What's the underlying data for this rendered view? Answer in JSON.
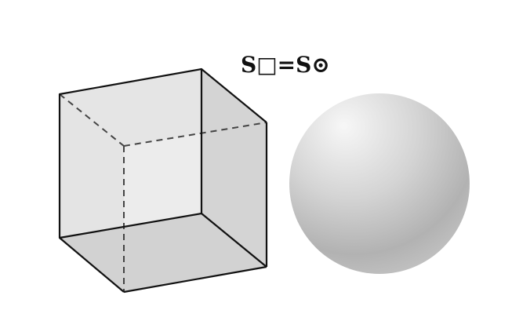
{
  "equation": {
    "text": "S□=S⊙"
  },
  "shapes": [
    {
      "kind": "cube",
      "name": "cube"
    },
    {
      "kind": "sphere",
      "name": "sphere"
    }
  ],
  "colors": {
    "background": "#ffffff",
    "edge": "#111111",
    "hidden_edge": "#444444",
    "face_light": "#f3f3f3",
    "face_mid": "#e2e2e2",
    "face_dark": "#cfcfcf",
    "sphere_highlight": "#f2f2f2",
    "sphere_shadow": "#a9a9a9"
  }
}
